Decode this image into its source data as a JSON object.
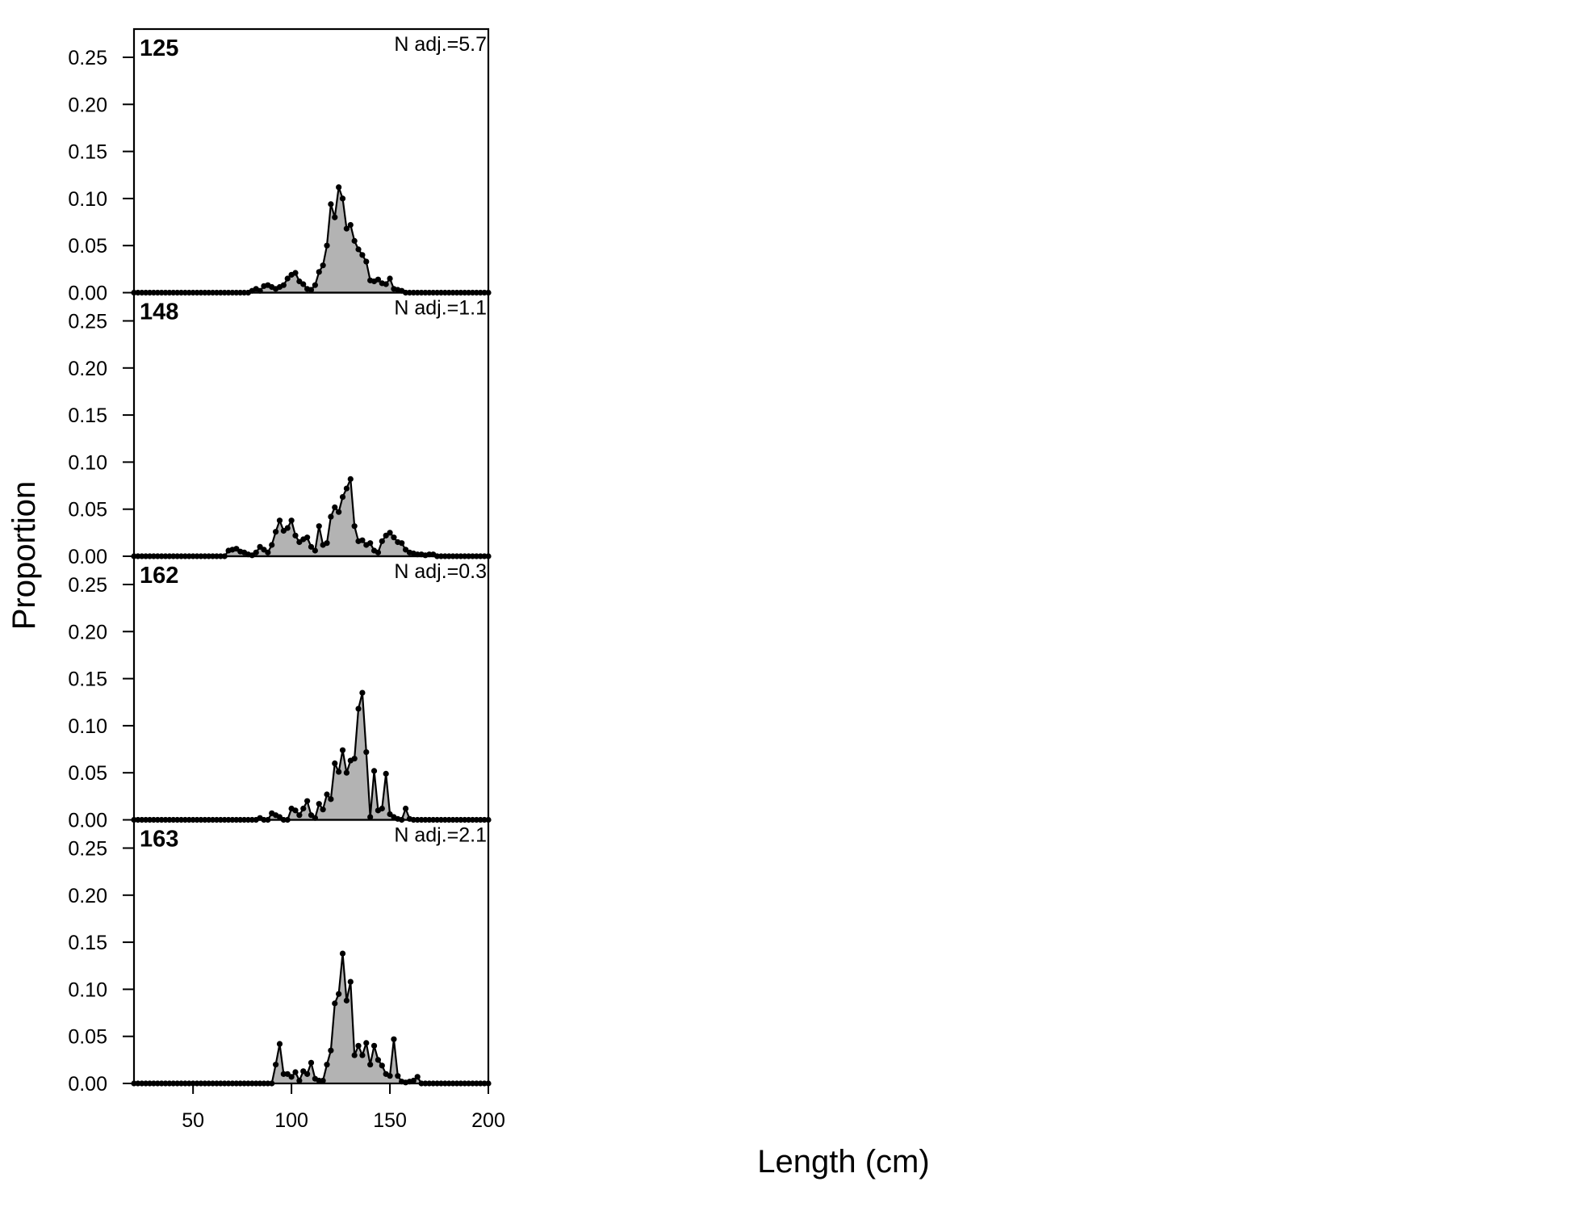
{
  "chart_data": {
    "type": "area",
    "xlabel": "Length (cm)",
    "ylabel": "Proportion",
    "xlim": [
      20,
      200
    ],
    "ylim": [
      0,
      0.28
    ],
    "x_ticks": [
      50,
      100,
      150,
      200
    ],
    "y_ticks": [
      0.0,
      0.05,
      0.1,
      0.15,
      0.2,
      0.25
    ],
    "y_tick_labels": [
      "0.00",
      "0.05",
      "0.10",
      "0.15",
      "0.20",
      "0.25"
    ],
    "x_bin_start": 20,
    "x_bin_width": 2,
    "fill_color": "#b3b3b3",
    "line_color": "#000000",
    "panels": [
      {
        "label": "125",
        "note": "N adj.=5.7",
        "values": [
          0,
          0,
          0,
          0,
          0,
          0,
          0,
          0,
          0,
          0,
          0,
          0,
          0,
          0,
          0,
          0,
          0,
          0,
          0,
          0,
          0,
          0,
          0,
          0,
          0,
          0,
          0,
          0,
          0,
          0,
          0.002,
          0.004,
          0.002,
          0.007,
          0.008,
          0.006,
          0.004,
          0.006,
          0.008,
          0.015,
          0.019,
          0.021,
          0.012,
          0.009,
          0.004,
          0.003,
          0.008,
          0.022,
          0.029,
          0.05,
          0.094,
          0.08,
          0.112,
          0.1,
          0.068,
          0.072,
          0.055,
          0.046,
          0.04,
          0.033,
          0.013,
          0.012,
          0.014,
          0.01,
          0.009,
          0.015,
          0.004,
          0.003,
          0.002,
          0,
          0,
          0,
          0,
          0,
          0,
          0,
          0,
          0,
          0,
          0,
          0,
          0,
          0,
          0,
          0,
          0,
          0,
          0,
          0,
          0,
          0
        ]
      },
      {
        "label": "148",
        "note": "N adj.=1.1",
        "values": [
          0,
          0,
          0,
          0,
          0,
          0,
          0,
          0,
          0,
          0,
          0,
          0,
          0,
          0,
          0,
          0,
          0,
          0,
          0,
          0,
          0,
          0,
          0,
          0,
          0.006,
          0.007,
          0.008,
          0.005,
          0.004,
          0.002,
          0.001,
          0.004,
          0.01,
          0.007,
          0.004,
          0.012,
          0.026,
          0.038,
          0.027,
          0.03,
          0.038,
          0.022,
          0.015,
          0.018,
          0.02,
          0.01,
          0.006,
          0.032,
          0.012,
          0.014,
          0.042,
          0.052,
          0.047,
          0.063,
          0.072,
          0.082,
          0.032,
          0.016,
          0.017,
          0.012,
          0.014,
          0.006,
          0.004,
          0.016,
          0.022,
          0.025,
          0.02,
          0.015,
          0.014,
          0.007,
          0.004,
          0.003,
          0.002,
          0.002,
          0.001,
          0.002,
          0.002,
          0,
          0,
          0,
          0,
          0,
          0,
          0,
          0,
          0,
          0,
          0,
          0,
          0,
          0
        ]
      },
      {
        "label": "162",
        "note": "N adj.=0.3",
        "values": [
          0,
          0,
          0,
          0,
          0,
          0,
          0,
          0,
          0,
          0,
          0,
          0,
          0,
          0,
          0,
          0,
          0,
          0,
          0,
          0,
          0,
          0,
          0,
          0,
          0,
          0,
          0,
          0,
          0,
          0,
          0,
          0,
          0.002,
          0,
          0,
          0.007,
          0.005,
          0.003,
          0,
          0,
          0.012,
          0.01,
          0.005,
          0.012,
          0.02,
          0.005,
          0.002,
          0.017,
          0.011,
          0.027,
          0.022,
          0.06,
          0.051,
          0.074,
          0.05,
          0.063,
          0.065,
          0.118,
          0.135,
          0.072,
          0.003,
          0.052,
          0.01,
          0.012,
          0.049,
          0.006,
          0.003,
          0.001,
          0,
          0.012,
          0.001,
          0,
          0,
          0,
          0,
          0,
          0,
          0,
          0,
          0,
          0,
          0,
          0,
          0,
          0,
          0,
          0,
          0,
          0,
          0,
          0
        ]
      },
      {
        "label": "163",
        "note": "N adj.=2.1",
        "values": [
          0,
          0,
          0,
          0,
          0,
          0,
          0,
          0,
          0,
          0,
          0,
          0,
          0,
          0,
          0,
          0,
          0,
          0,
          0,
          0,
          0,
          0,
          0,
          0,
          0,
          0,
          0,
          0,
          0,
          0,
          0,
          0,
          0,
          0,
          0,
          0,
          0.02,
          0.042,
          0.01,
          0.01,
          0.007,
          0.012,
          0.003,
          0.013,
          0.01,
          0.022,
          0.005,
          0.003,
          0.003,
          0.02,
          0.035,
          0.085,
          0.095,
          0.138,
          0.088,
          0.108,
          0.03,
          0.04,
          0.03,
          0.043,
          0.02,
          0.04,
          0.025,
          0.019,
          0.01,
          0.008,
          0.047,
          0.008,
          0.002,
          0.001,
          0.002,
          0.003,
          0.007,
          0,
          0,
          0,
          0,
          0,
          0,
          0,
          0,
          0,
          0,
          0,
          0,
          0,
          0,
          0,
          0,
          0,
          0
        ]
      }
    ]
  }
}
